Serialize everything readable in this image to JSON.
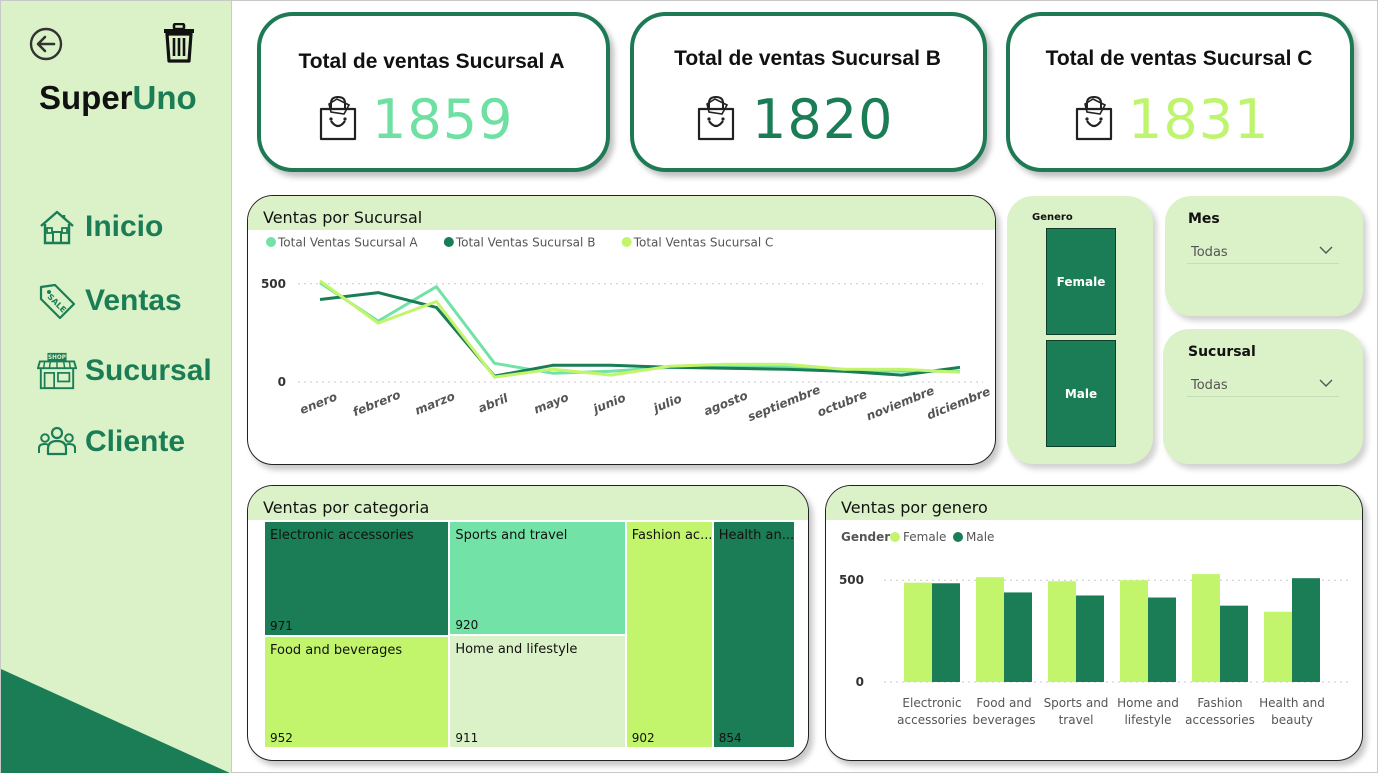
{
  "brand": {
    "part1": "Super",
    "part2": "Uno"
  },
  "nav": [
    {
      "label": "Inicio",
      "icon": "house-icon"
    },
    {
      "label": "Ventas",
      "icon": "sale-tag-icon"
    },
    {
      "label": "Sucursal",
      "icon": "shop-icon"
    },
    {
      "label": "Cliente",
      "icon": "people-icon"
    }
  ],
  "kpis": [
    {
      "title": "Total de ventas Sucursal A",
      "value": "1859",
      "color": "#6ee0a2",
      "icon": "shopping-bag-icon"
    },
    {
      "title": "Total de ventas Sucursal B",
      "value": "1820",
      "color": "#1b7d56",
      "icon": "shopping-bag-icon"
    },
    {
      "title": "Total de ventas Sucursal C",
      "value": "1831",
      "color": "#bff56e",
      "icon": "shopping-bag-icon"
    }
  ],
  "colors": {
    "green_dark": "#1b7d56",
    "green_mint": "#72e2a6",
    "green_lime": "#c2f56c",
    "panel_bg": "#dbf2c8"
  },
  "line_panel": {
    "title": "Ventas por Sucursal"
  },
  "genero_slicer": {
    "title": "Genero",
    "options": [
      "Female",
      "Male"
    ]
  },
  "mes_slicer": {
    "title": "Mes",
    "value": "Todas"
  },
  "sucursal_slicer": {
    "title": "Sucursal",
    "value": "Todas"
  },
  "treemap_panel": {
    "title": "Ventas por categoria"
  },
  "bar_panel": {
    "title": "Ventas por genero",
    "legend_title": "Gender"
  },
  "chart_data": [
    {
      "type": "line",
      "title": "Ventas por Sucursal",
      "categories": [
        "enero",
        "febrero",
        "marzo",
        "abril",
        "mayo",
        "junio",
        "julio",
        "agosto",
        "septiembre",
        "octubre",
        "noviembre",
        "diciembre"
      ],
      "yticks": [
        0,
        500
      ],
      "ylim": [
        0,
        560
      ],
      "grid": true,
      "legend_position": "top-left",
      "series": [
        {
          "name": "Total Ventas Sucursal A",
          "color": "#72e2a6",
          "values": [
            505,
            310,
            485,
            95,
            45,
            55,
            75,
            80,
            80,
            60,
            55,
            55
          ]
        },
        {
          "name": "Total Ventas Sucursal B",
          "color": "#1b7d56",
          "values": [
            420,
            455,
            380,
            30,
            85,
            85,
            75,
            70,
            65,
            55,
            35,
            75
          ]
        },
        {
          "name": "Total Ventas Sucursal C",
          "color": "#c2f56c",
          "values": [
            515,
            300,
            410,
            25,
            65,
            35,
            80,
            90,
            90,
            65,
            65,
            50
          ]
        }
      ]
    },
    {
      "type": "treemap",
      "title": "Ventas por categoria",
      "items": [
        {
          "label": "Electronic accessories",
          "value": 971,
          "color": "#1b7d56"
        },
        {
          "label": "Sports and travel",
          "value": 920,
          "color": "#72e2a6"
        },
        {
          "label": "Food and beverages",
          "value": 952,
          "color": "#c2f56c"
        },
        {
          "label": "Home and lifestyle",
          "value": 911,
          "color": "#dbf2c8"
        },
        {
          "label": "Fashion ac...",
          "value": 902,
          "color": "#c2f56c"
        },
        {
          "label": "Health an...",
          "value": 854,
          "color": "#1b7d56"
        }
      ]
    },
    {
      "type": "bar",
      "title": "Ventas por genero",
      "categories": [
        "Electronic accessories",
        "Food and beverages",
        "Sports and travel",
        "Home and lifestyle",
        "Fashion accessories",
        "Health and beauty"
      ],
      "category_lines": [
        [
          "Electronic",
          "accessories"
        ],
        [
          "Food and",
          "beverages"
        ],
        [
          "Sports and",
          "travel"
        ],
        [
          "Home and",
          "lifestyle"
        ],
        [
          "Fashion",
          "accessories"
        ],
        [
          "Health and",
          "beauty"
        ]
      ],
      "yticks": [
        0,
        500
      ],
      "ylim": [
        0,
        560
      ],
      "legend_title": "Gender",
      "legend_position": "top-left",
      "series": [
        {
          "name": "Female",
          "color": "#c2f56c",
          "values": [
            488,
            515,
            495,
            500,
            530,
            345
          ]
        },
        {
          "name": "Male",
          "color": "#1b7d56",
          "values": [
            485,
            440,
            425,
            415,
            375,
            510
          ]
        }
      ]
    }
  ]
}
